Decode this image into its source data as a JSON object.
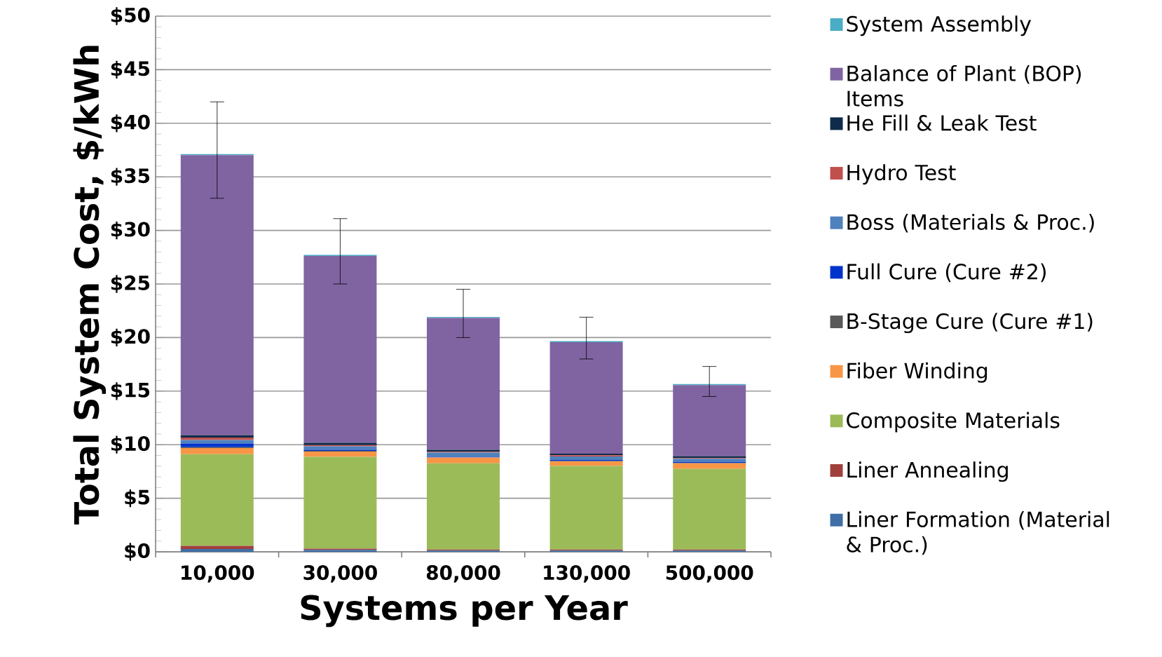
{
  "chart_data": {
    "type": "bar",
    "stacked": true,
    "xlabel": "Systems per Year",
    "ylabel": "Total System Cost, $/kWh",
    "categories": [
      "10,000",
      "30,000",
      "80,000",
      "130,000",
      "500,000"
    ],
    "series": [
      {
        "name": "Liner Formation (Material & Proc.)",
        "color": "#3f6fa6",
        "values": [
          0.26,
          0.18,
          0.11,
          0.11,
          0.11
        ]
      },
      {
        "name": "Liner Annealing",
        "color": "#a0403d",
        "values": [
          0.29,
          0.11,
          0.11,
          0.11,
          0.11
        ]
      },
      {
        "name": "Composite Materials",
        "color": "#9bbb59",
        "values": [
          8.57,
          8.57,
          8.05,
          7.79,
          7.52
        ]
      },
      {
        "name": "Fiber Winding",
        "color": "#f79646",
        "values": [
          0.57,
          0.5,
          0.53,
          0.44,
          0.53
        ]
      },
      {
        "name": "B-Stage Cure (Cure #1)",
        "color": "#595959",
        "values": [
          0.07,
          0.07,
          null,
          0.03,
          0.03
        ]
      },
      {
        "name": "Full Cure (Cure #2)",
        "color": "#0033cc",
        "values": [
          0.35,
          0.09,
          0.07,
          0.09,
          0.09
        ]
      },
      {
        "name": "Boss (Materials & Proc.)",
        "color": "#4f81bd",
        "values": [
          0.33,
          0.33,
          0.39,
          0.33,
          0.29
        ]
      },
      {
        "name": "Hydro Test",
        "color": "#c0504d",
        "values": [
          0.22,
          0.11,
          0.09,
          0.11,
          0.07
        ]
      },
      {
        "name": "He Fill & Leak Test",
        "color": "#0f2a4a",
        "values": [
          0.22,
          0.22,
          0.18,
          0.15,
          0.18
        ]
      },
      {
        "name": "Balance of Plant (BOP) Items",
        "color": "#8064a2",
        "values": [
          26.14,
          17.44,
          12.29,
          10.4,
          6.63
        ]
      },
      {
        "name": "System Assembly",
        "color": "#4bacc6",
        "values": [
          0.1,
          0.1,
          0.1,
          0.1,
          0.1
        ],
        "errors": [
          [
            33,
            42
          ],
          [
            25,
            31.1
          ],
          [
            20,
            24.5
          ],
          [
            18,
            21.9
          ],
          [
            14.5,
            17.3
          ]
        ]
      }
    ],
    "ylim": [
      0,
      50
    ],
    "yticks": [
      {
        "value": 0,
        "label": "$0"
      },
      {
        "value": 5,
        "label": "$5"
      },
      {
        "value": 10,
        "label": "$10"
      },
      {
        "value": 15,
        "label": "$15"
      },
      {
        "value": 20,
        "label": "$20"
      },
      {
        "value": 25,
        "label": "$25"
      },
      {
        "value": 30,
        "label": "$30"
      },
      {
        "value": 35,
        "label": "$35"
      },
      {
        "value": 40,
        "label": "$40"
      },
      {
        "value": 45,
        "label": "$45"
      },
      {
        "value": 50,
        "label": "$50"
      }
    ],
    "grid": "y",
    "legend": "right"
  }
}
